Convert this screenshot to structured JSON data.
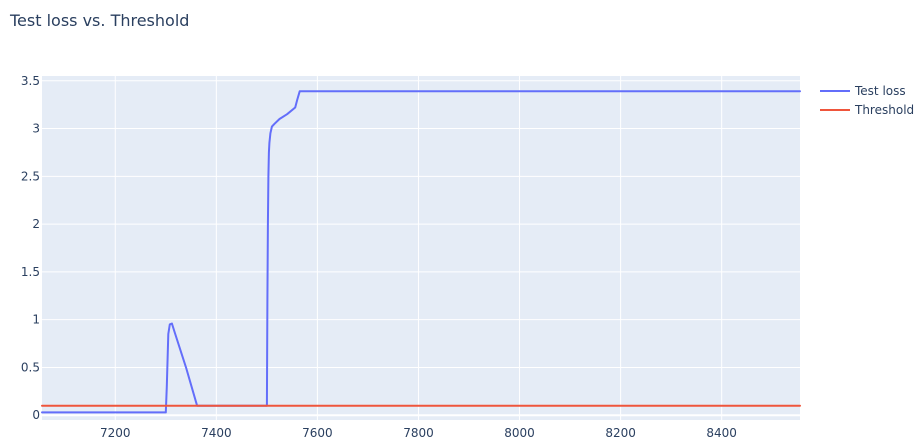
{
  "chart_data": {
    "type": "line",
    "title": "Test loss vs. Threshold",
    "xlabel": "",
    "ylabel": "",
    "xlim": [
      7055,
      8555
    ],
    "ylim": [
      -0.05,
      3.55
    ],
    "grid": true,
    "legend_position": "top-right",
    "x_ticks": [
      7200,
      7400,
      7600,
      7800,
      8000,
      8200,
      8400
    ],
    "x_tick_labels": [
      "7200",
      "7400",
      "7600",
      "7800",
      "8000",
      "8200",
      "8400"
    ],
    "y_ticks": [
      0,
      0.5,
      1,
      1.5,
      2,
      2.5,
      3,
      3.5
    ],
    "y_tick_labels": [
      "0",
      "0.5",
      "1",
      "1.5",
      "2",
      "2.5",
      "3",
      "3.5"
    ],
    "series": [
      {
        "name": "Test loss",
        "color": "#636efa",
        "x": [
          7055,
          7300,
          7302,
          7305,
          7308,
          7312,
          7318,
          7340,
          7362,
          7420,
          7480,
          7500,
          7501,
          7502,
          7503,
          7504,
          7505,
          7507,
          7510,
          7515,
          7525,
          7540,
          7556,
          7560,
          7565,
          7600,
          7800,
          8000,
          8200,
          8400,
          8555
        ],
        "y": [
          0.03,
          0.03,
          0.3,
          0.85,
          0.95,
          0.96,
          0.86,
          0.5,
          0.1,
          0.1,
          0.1,
          0.1,
          1.2,
          2.0,
          2.5,
          2.75,
          2.85,
          2.95,
          3.02,
          3.05,
          3.1,
          3.15,
          3.22,
          3.3,
          3.39,
          3.39,
          3.39,
          3.39,
          3.39,
          3.39,
          3.39
        ]
      },
      {
        "name": "Threshold",
        "color": "#ef553b",
        "x": [
          7055,
          8555
        ],
        "y": [
          0.1,
          0.1
        ]
      }
    ]
  }
}
